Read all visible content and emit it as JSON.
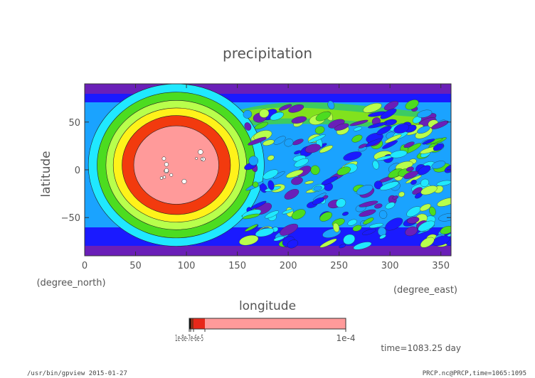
{
  "chart_data": {
    "type": "heatmap",
    "title": "precipitation",
    "xlabel": "longitude",
    "ylabel": "latitude",
    "x_unit": "(degree_east)",
    "y_unit": "(degree_north)",
    "xlim": [
      0,
      360
    ],
    "ylim": [
      -90,
      90
    ],
    "x_ticks": [
      0,
      50,
      100,
      150,
      200,
      250,
      300,
      350
    ],
    "y_ticks": [
      -50,
      0,
      50
    ],
    "x_tick_labels": [
      "0",
      "50",
      "100",
      "150",
      "200",
      "250",
      "300",
      "350"
    ],
    "y_tick_labels": [
      "−50",
      "0",
      "50"
    ],
    "grid": false,
    "time_label": "time=1083.25 day",
    "colorbar": {
      "labels": [
        "1e-4"
      ],
      "left_label_overlap": "1e-8e-7e-6e-5",
      "colors": [
        "#000000",
        "#8b2f18",
        "#e8281a",
        "#ff9a9a"
      ]
    },
    "contour_colors": [
      "#6a1fb8",
      "#1a1aff",
      "#1aa3ff",
      "#20e8ff",
      "#4cdc20",
      "#b8ff4c",
      "#fff21a",
      "#f23a0e",
      "#ff9a9a"
    ],
    "features": [
      {
        "name": "precip-core",
        "lon": 90,
        "lat": 5
      }
    ]
  },
  "footer": {
    "left": "/usr/bin/gpview  2015-01-27",
    "right": "PRCP.nc@PRCP,time=1065:1095"
  }
}
